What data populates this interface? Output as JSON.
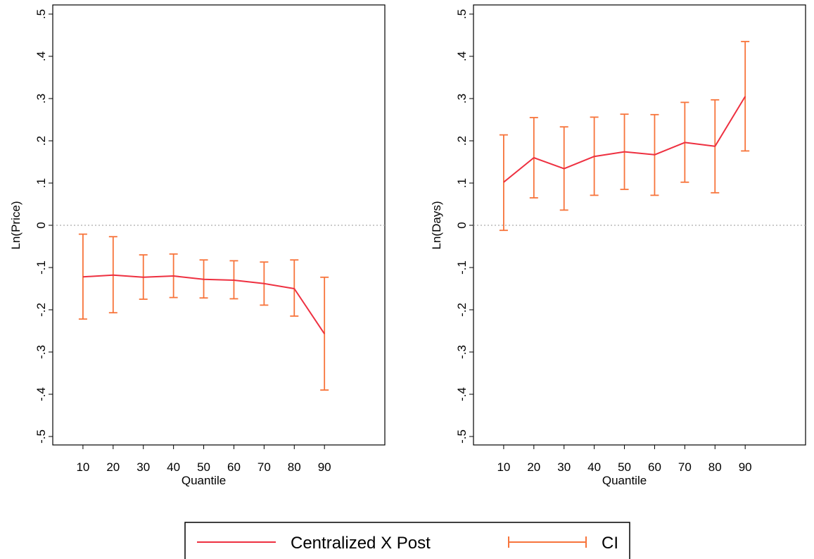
{
  "chart_data": [
    {
      "type": "line",
      "xlabel": "Quantile",
      "ylabel": "Ln(Price)",
      "x": [
        10,
        20,
        30,
        40,
        50,
        60,
        70,
        80,
        90
      ],
      "series": [
        {
          "name": "Centralized X Post",
          "values": [
            -0.122,
            -0.118,
            -0.123,
            -0.12,
            -0.128,
            -0.13,
            -0.138,
            -0.15,
            -0.257
          ]
        }
      ],
      "ci": {
        "name": "CI",
        "lower": [
          -0.222,
          -0.207,
          -0.175,
          -0.171,
          -0.172,
          -0.174,
          -0.189,
          -0.215,
          -0.39
        ],
        "upper": [
          -0.021,
          -0.027,
          -0.07,
          -0.068,
          -0.082,
          -0.084,
          -0.087,
          -0.082,
          -0.123
        ]
      },
      "ylim": [
        -0.5,
        0.5
      ],
      "xlim": [
        0,
        110
      ],
      "yticks": [
        -0.5,
        -0.4,
        -0.3,
        -0.2,
        -0.1,
        0,
        0.1,
        0.2,
        0.3,
        0.4,
        0.5
      ],
      "ytick_labels": [
        "-.5",
        "-.4",
        "-.3",
        "-.2",
        "-.1",
        "0",
        ".1",
        ".2",
        ".3",
        ".4",
        ".5"
      ],
      "xticks": [
        10,
        20,
        30,
        40,
        50,
        60,
        70,
        80,
        90
      ],
      "xtick_labels": [
        "10",
        "20",
        "30",
        "40",
        "50",
        "60",
        "70",
        "80",
        "90"
      ],
      "reference_line": 0,
      "grid": false
    },
    {
      "type": "line",
      "xlabel": "Quantile",
      "ylabel": "Ln(Days)",
      "x": [
        10,
        20,
        30,
        40,
        50,
        60,
        70,
        80,
        90
      ],
      "series": [
        {
          "name": "Centralized X Post",
          "values": [
            0.102,
            0.16,
            0.134,
            0.163,
            0.174,
            0.167,
            0.196,
            0.187,
            0.305
          ]
        }
      ],
      "ci": {
        "name": "CI",
        "lower": [
          -0.012,
          0.065,
          0.036,
          0.071,
          0.085,
          0.071,
          0.102,
          0.077,
          0.176
        ],
        "upper": [
          0.214,
          0.255,
          0.233,
          0.256,
          0.263,
          0.262,
          0.291,
          0.297,
          0.435
        ]
      },
      "ylim": [
        -0.5,
        0.5
      ],
      "xlim": [
        0,
        110
      ],
      "yticks": [
        -0.5,
        -0.4,
        -0.3,
        -0.2,
        -0.1,
        0,
        0.1,
        0.2,
        0.3,
        0.4,
        0.5
      ],
      "ytick_labels": [
        "-.5",
        "-.4",
        "-.3",
        "-.2",
        "-.1",
        "0",
        ".1",
        ".2",
        ".3",
        ".4",
        ".5"
      ],
      "xticks": [
        10,
        20,
        30,
        40,
        50,
        60,
        70,
        80,
        90
      ],
      "xtick_labels": [
        "10",
        "20",
        "30",
        "40",
        "50",
        "60",
        "70",
        "80",
        "90"
      ],
      "reference_line": 0,
      "grid": false
    }
  ],
  "legend": {
    "position": "bottom-center",
    "items": [
      {
        "label": "Centralized X Post",
        "kind": "line"
      },
      {
        "label": "CI",
        "kind": "errorbar"
      }
    ]
  },
  "colors": {
    "line": "#ee3040",
    "ci": "#f7743b",
    "reference": "#aaaaaa",
    "frame": "#000000"
  }
}
